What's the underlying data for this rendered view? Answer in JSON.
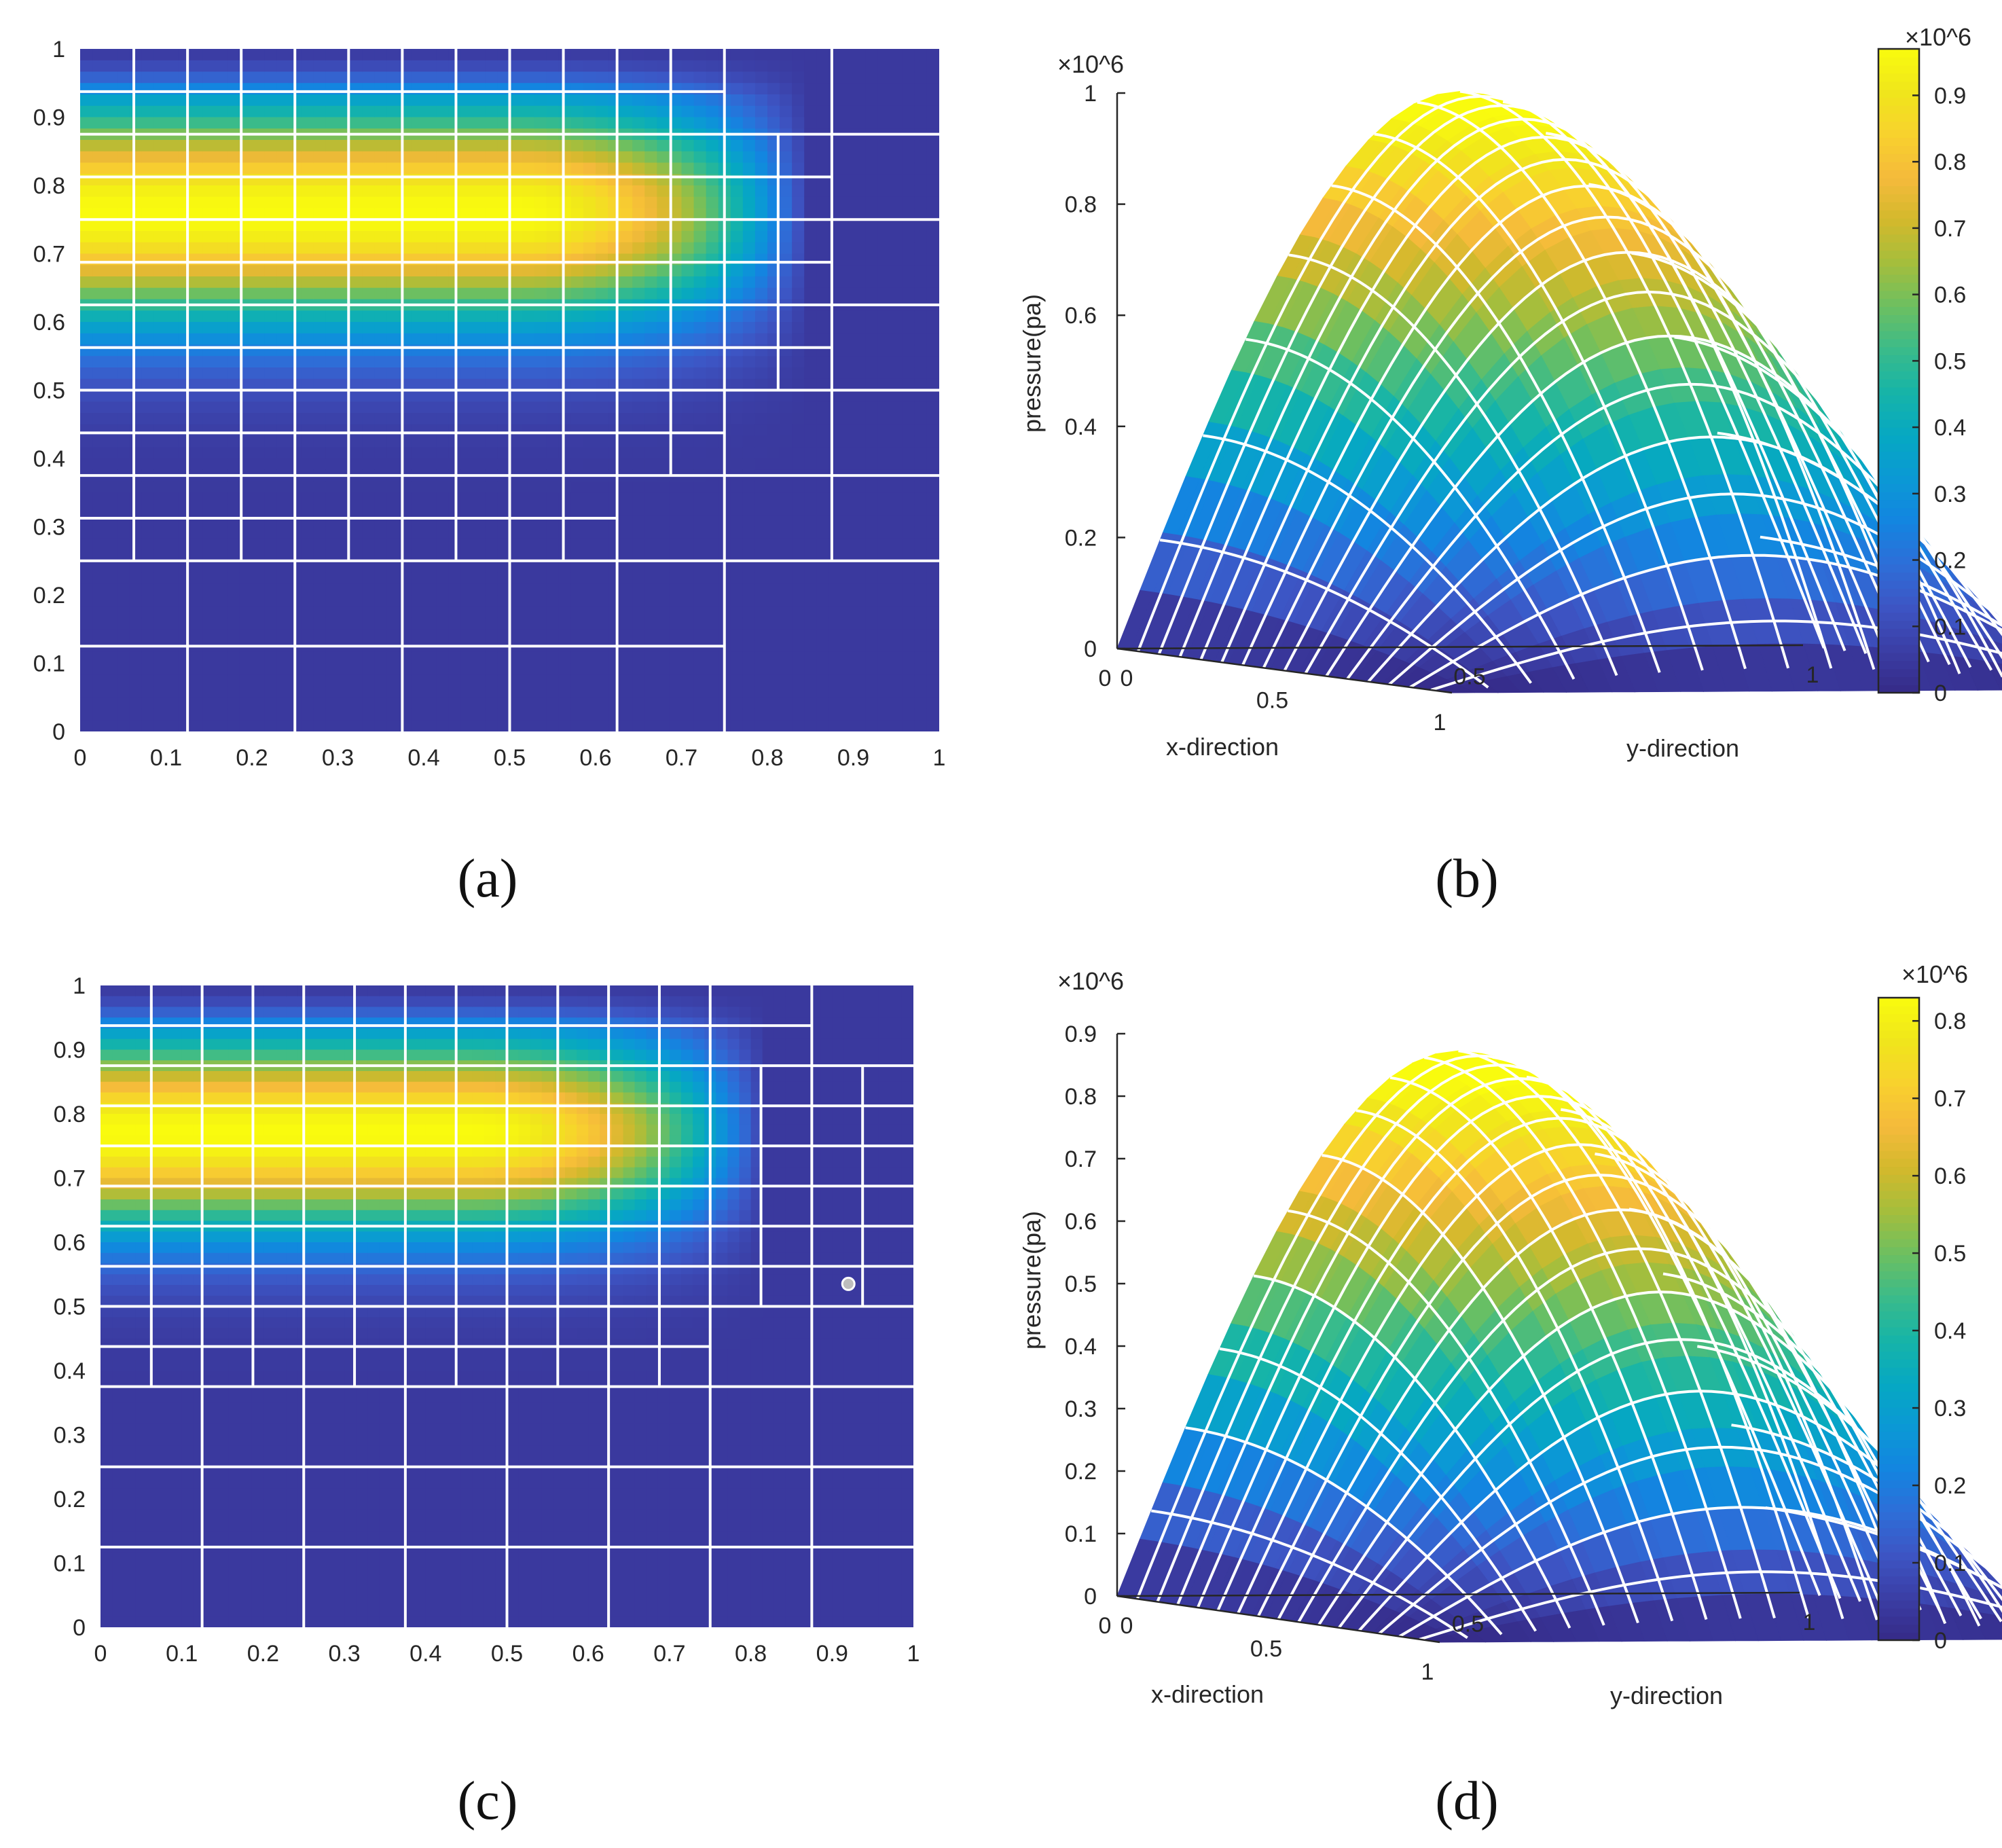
{
  "figure": {
    "panel_labels": [
      "(a)",
      "(b)",
      "(c)",
      "(d)"
    ]
  },
  "chart_data": [
    {
      "id": "a",
      "type": "heatmap",
      "title": "",
      "xlabel": "",
      "ylabel": "",
      "xlim": [
        0,
        1
      ],
      "ylim": [
        0,
        1
      ],
      "x_ticks": [
        "0",
        "0.1",
        "0.2",
        "0.3",
        "0.4",
        "0.5",
        "0.6",
        "0.7",
        "0.8",
        "0.9",
        "1"
      ],
      "y_ticks": [
        "0",
        "0.1",
        "0.2",
        "0.3",
        "0.4",
        "0.5",
        "0.6",
        "0.7",
        "0.8",
        "0.9",
        "1"
      ],
      "field": {
        "peak_value": 1.0,
        "peak_y": 0.76,
        "sigma_y": 0.16,
        "x_decay_start": 0.5,
        "x_extent": 0.85
      },
      "mesh": {
        "horizontal_lines": [
          {
            "y": 0.125,
            "x0": 0,
            "x1": 0.75
          },
          {
            "y": 0.25,
            "x0": 0,
            "x1": 1
          },
          {
            "y": 0.3125,
            "x0": 0,
            "x1": 0.625
          },
          {
            "y": 0.375,
            "x0": 0,
            "x1": 1
          },
          {
            "y": 0.4375,
            "x0": 0,
            "x1": 0.75
          },
          {
            "y": 0.5,
            "x0": 0,
            "x1": 1
          },
          {
            "y": 0.5625,
            "x0": 0,
            "x1": 0.875
          },
          {
            "y": 0.625,
            "x0": 0,
            "x1": 1
          },
          {
            "y": 0.6875,
            "x0": 0,
            "x1": 0.875
          },
          {
            "y": 0.75,
            "x0": 0,
            "x1": 1
          },
          {
            "y": 0.8125,
            "x0": 0,
            "x1": 0.875
          },
          {
            "y": 0.875,
            "x0": 0,
            "x1": 1
          },
          {
            "y": 0.9375,
            "x0": 0,
            "x1": 0.75
          }
        ],
        "vertical_lines": [
          {
            "x": 0.0625,
            "y0": 0.25,
            "y1": 1
          },
          {
            "x": 0.125,
            "y0": 0,
            "y1": 1
          },
          {
            "x": 0.1875,
            "y0": 0.25,
            "y1": 1
          },
          {
            "x": 0.25,
            "y0": 0,
            "y1": 1
          },
          {
            "x": 0.3125,
            "y0": 0.25,
            "y1": 1
          },
          {
            "x": 0.375,
            "y0": 0,
            "y1": 1
          },
          {
            "x": 0.4375,
            "y0": 0.25,
            "y1": 1
          },
          {
            "x": 0.5,
            "y0": 0,
            "y1": 1
          },
          {
            "x": 0.5625,
            "y0": 0.25,
            "y1": 1
          },
          {
            "x": 0.625,
            "y0": 0,
            "y1": 1
          },
          {
            "x": 0.6875,
            "y0": 0.375,
            "y1": 1
          },
          {
            "x": 0.75,
            "y0": 0,
            "y1": 1
          },
          {
            "x": 0.8125,
            "y0": 0.5,
            "y1": 0.875
          },
          {
            "x": 0.875,
            "y0": 0.25,
            "y1": 1
          }
        ]
      }
    },
    {
      "id": "b",
      "type": "surface",
      "title": "",
      "zlabel": "pressure(pa)",
      "xlabel": "x-direction",
      "ylabel": "y-direction",
      "exponent_label": "×10^6",
      "zlim": [
        0,
        1
      ],
      "z_ticks": [
        "0",
        "0.2",
        "0.4",
        "0.6",
        "0.8",
        "1"
      ],
      "x_ticks": [
        "0",
        "0.5",
        "1"
      ],
      "y_ticks": [
        "0",
        "0.5",
        "1"
      ],
      "peak_value": 1.0,
      "mesh_divisions_x": 16,
      "mesh_divisions_y": 16,
      "colorbar": {
        "exponent_label": "×10^6",
        "range": [
          0,
          0.97
        ],
        "ticks": [
          "0",
          "0.1",
          "0.2",
          "0.3",
          "0.4",
          "0.5",
          "0.6",
          "0.7",
          "0.8",
          "0.9"
        ]
      }
    },
    {
      "id": "c",
      "type": "heatmap",
      "title": "",
      "xlabel": "",
      "ylabel": "",
      "xlim": [
        0,
        1
      ],
      "ylim": [
        0,
        1
      ],
      "x_ticks": [
        "0",
        "0.1",
        "0.2",
        "0.3",
        "0.4",
        "0.5",
        "0.6",
        "0.7",
        "0.8",
        "0.9",
        "1"
      ],
      "y_ticks": [
        "0",
        "0.1",
        "0.2",
        "0.3",
        "0.4",
        "0.5",
        "0.6",
        "0.7",
        "0.8",
        "0.9",
        "1"
      ],
      "field": {
        "peak_value": 0.83,
        "peak_y": 0.77,
        "sigma_y": 0.15,
        "x_decay_start": 0.45,
        "x_extent": 0.82
      },
      "marker": {
        "x": 0.92,
        "y": 0.535
      },
      "mesh": {
        "horizontal_lines": [
          {
            "y": 0.125,
            "x0": 0,
            "x1": 1
          },
          {
            "y": 0.25,
            "x0": 0,
            "x1": 1
          },
          {
            "y": 0.375,
            "x0": 0,
            "x1": 1
          },
          {
            "y": 0.4375,
            "x0": 0,
            "x1": 0.75
          },
          {
            "y": 0.5,
            "x0": 0,
            "x1": 1
          },
          {
            "y": 0.5625,
            "x0": 0,
            "x1": 1
          },
          {
            "y": 0.625,
            "x0": 0,
            "x1": 1
          },
          {
            "y": 0.6875,
            "x0": 0,
            "x1": 1
          },
          {
            "y": 0.75,
            "x0": 0,
            "x1": 1
          },
          {
            "y": 0.8125,
            "x0": 0,
            "x1": 1
          },
          {
            "y": 0.875,
            "x0": 0,
            "x1": 1
          },
          {
            "y": 0.9375,
            "x0": 0,
            "x1": 0.875
          }
        ],
        "vertical_lines": [
          {
            "x": 0.0625,
            "y0": 0.375,
            "y1": 1
          },
          {
            "x": 0.125,
            "y0": 0,
            "y1": 1
          },
          {
            "x": 0.1875,
            "y0": 0.375,
            "y1": 1
          },
          {
            "x": 0.25,
            "y0": 0,
            "y1": 1
          },
          {
            "x": 0.3125,
            "y0": 0.375,
            "y1": 1
          },
          {
            "x": 0.375,
            "y0": 0,
            "y1": 1
          },
          {
            "x": 0.4375,
            "y0": 0.375,
            "y1": 1
          },
          {
            "x": 0.5,
            "y0": 0,
            "y1": 1
          },
          {
            "x": 0.5625,
            "y0": 0.375,
            "y1": 1
          },
          {
            "x": 0.625,
            "y0": 0,
            "y1": 1
          },
          {
            "x": 0.6875,
            "y0": 0.375,
            "y1": 1
          },
          {
            "x": 0.75,
            "y0": 0,
            "y1": 1
          },
          {
            "x": 0.8125,
            "y0": 0.5,
            "y1": 0.875
          },
          {
            "x": 0.875,
            "y0": 0,
            "y1": 1
          },
          {
            "x": 0.9375,
            "y0": 0.5,
            "y1": 0.875
          }
        ]
      }
    },
    {
      "id": "d",
      "type": "surface",
      "title": "",
      "zlabel": "pressure(pa)",
      "xlabel": "x-direction",
      "ylabel": "y-direction",
      "exponent_label": "×10^6",
      "zlim": [
        0,
        0.9
      ],
      "z_ticks": [
        "0",
        "0.1",
        "0.2",
        "0.3",
        "0.4",
        "0.5",
        "0.6",
        "0.7",
        "0.8",
        "0.9"
      ],
      "x_ticks": [
        "0",
        "0.5",
        "1"
      ],
      "y_ticks": [
        "0",
        "0.5",
        "1"
      ],
      "peak_value": 0.87,
      "mesh_divisions_x": 16,
      "mesh_divisions_y": 20,
      "colorbar": {
        "exponent_label": "×10^6",
        "range": [
          0,
          0.83
        ],
        "ticks": [
          "0",
          "0.1",
          "0.2",
          "0.3",
          "0.4",
          "0.5",
          "0.6",
          "0.7",
          "0.8"
        ]
      }
    }
  ],
  "colors": {
    "parula": [
      "#352a87",
      "#3b3ea5",
      "#3d55c4",
      "#2d6ed8",
      "#1385e0",
      "#0b99d5",
      "#06a8c2",
      "#16b4a8",
      "#3abb8a",
      "#6cbf61",
      "#a4be3d",
      "#d2b92c",
      "#f5ba3b",
      "#f8d12e",
      "#f0e61b",
      "#f9fb0e"
    ],
    "mesh": "#ffffff",
    "axis": "#262626"
  }
}
